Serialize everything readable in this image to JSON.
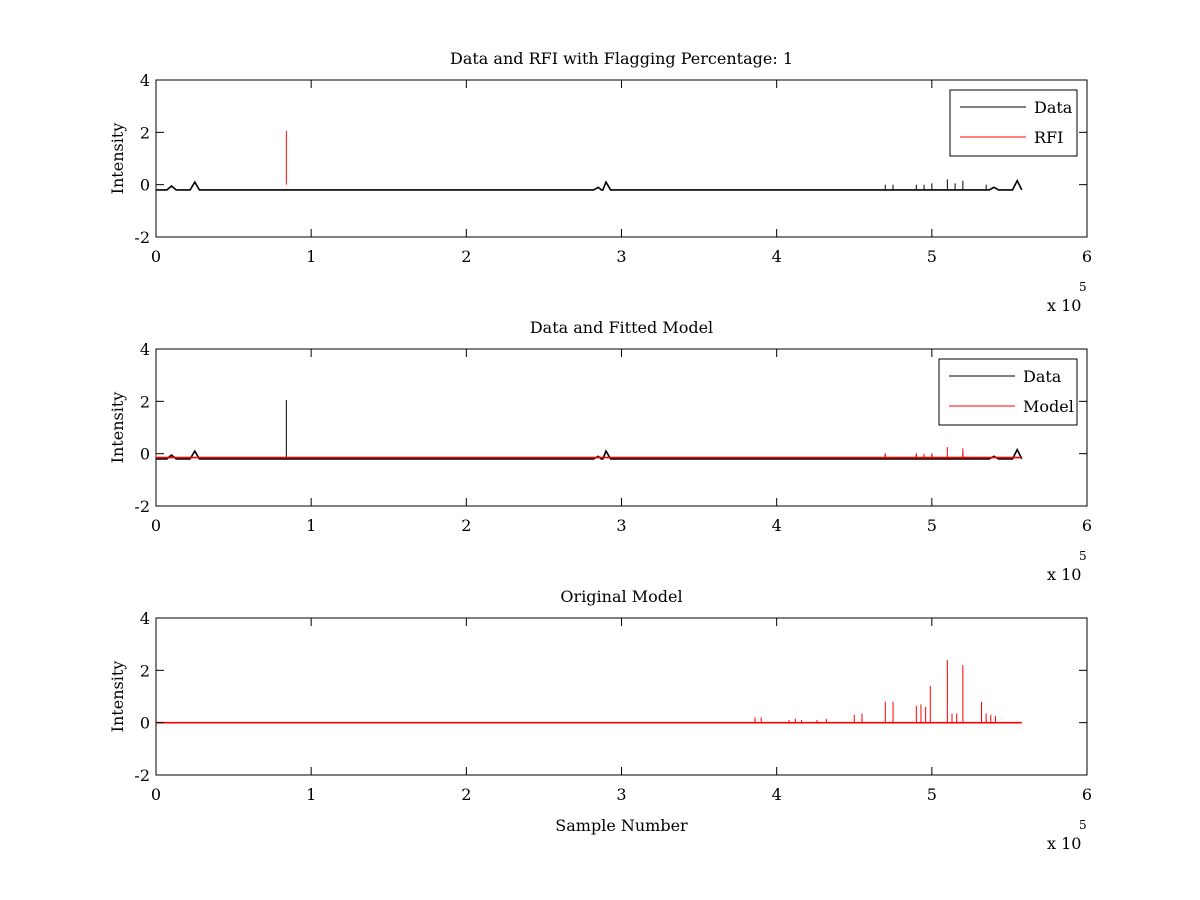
{
  "chart_data": [
    {
      "type": "line",
      "title": "Data and RFI with Flagging Percentage: 1",
      "ylabel": "Intensity",
      "xlabel": "",
      "xlim": [
        0,
        600000
      ],
      "ylim": [
        -2,
        4
      ],
      "x_ticks": [
        "0",
        "1",
        "2",
        "3",
        "4",
        "5",
        "6"
      ],
      "y_ticks": [
        "-2",
        "0",
        "2",
        "4"
      ],
      "x_multiplier": "x 10",
      "x_multiplier_exp": "5",
      "legend_position": "top-right",
      "grid": false,
      "series": [
        {
          "name": "Data",
          "color": "#000000",
          "baseline": -0.2,
          "bumps": [
            [
              10000,
              -0.05
            ],
            [
              25000,
              0.1
            ],
            [
              285000,
              -0.1
            ],
            [
              290000,
              0.1
            ],
            [
              540000,
              -0.1
            ],
            [
              555000,
              0.15
            ]
          ],
          "spikes": [
            [
              470000,
              0.0
            ],
            [
              475000,
              0.0
            ],
            [
              490000,
              0.0
            ],
            [
              495000,
              0.0
            ],
            [
              500000,
              0.05
            ],
            [
              510000,
              0.2
            ],
            [
              515000,
              0.05
            ],
            [
              520000,
              0.15
            ],
            [
              535000,
              0.0
            ]
          ],
          "x_end": 558000
        },
        {
          "name": "RFI",
          "color": "#ff0000",
          "spikes": [
            [
              84000,
              2.05
            ]
          ],
          "x_start": 84000,
          "x_end": 84000
        }
      ]
    },
    {
      "type": "line",
      "title": "Data and Fitted Model",
      "ylabel": "Intensity",
      "xlabel": "",
      "xlim": [
        0,
        600000
      ],
      "ylim": [
        -2,
        4
      ],
      "x_ticks": [
        "0",
        "1",
        "2",
        "3",
        "4",
        "5",
        "6"
      ],
      "y_ticks": [
        "-2",
        "0",
        "2",
        "4"
      ],
      "x_multiplier": "x 10",
      "x_multiplier_exp": "5",
      "legend_position": "top-right",
      "grid": false,
      "series": [
        {
          "name": "Data",
          "color": "#000000",
          "baseline": -0.2,
          "bumps": [
            [
              10000,
              -0.05
            ],
            [
              25000,
              0.1
            ],
            [
              285000,
              -0.1
            ],
            [
              290000,
              0.1
            ],
            [
              540000,
              -0.1
            ],
            [
              555000,
              0.15
            ]
          ],
          "spikes": [
            [
              84000,
              2.05
            ],
            [
              470000,
              0.0
            ],
            [
              490000,
              0.0
            ],
            [
              500000,
              0.0
            ],
            [
              520000,
              0.05
            ]
          ],
          "x_end": 558000
        },
        {
          "name": "Model",
          "color": "#ff0000",
          "baseline": -0.15,
          "spikes": [
            [
              0,
              0.05
            ],
            [
              470000,
              0.0
            ],
            [
              490000,
              0.0
            ],
            [
              495000,
              0.0
            ],
            [
              500000,
              0.0
            ],
            [
              510000,
              0.25
            ],
            [
              520000,
              0.2
            ]
          ],
          "x_end": 558000
        }
      ]
    },
    {
      "type": "line",
      "title": "Original Model",
      "ylabel": "Intensity",
      "xlabel": "Sample Number",
      "xlim": [
        0,
        600000
      ],
      "ylim": [
        -2,
        4
      ],
      "x_ticks": [
        "0",
        "1",
        "2",
        "3",
        "4",
        "5",
        "6"
      ],
      "y_ticks": [
        "-2",
        "0",
        "2",
        "4"
      ],
      "x_multiplier": "x 10",
      "x_multiplier_exp": "5",
      "legend_position": "none",
      "grid": false,
      "series": [
        {
          "color": "#ff0000",
          "baseline": 0,
          "spikes": [
            [
              386000,
              0.2
            ],
            [
              390000,
              0.2
            ],
            [
              408000,
              0.1
            ],
            [
              412000,
              0.15
            ],
            [
              416000,
              0.1
            ],
            [
              426000,
              0.1
            ],
            [
              432000,
              0.15
            ],
            [
              450000,
              0.3
            ],
            [
              455000,
              0.35
            ],
            [
              470000,
              0.8
            ],
            [
              475000,
              0.8
            ],
            [
              490000,
              0.65
            ],
            [
              493000,
              0.7
            ],
            [
              496000,
              0.6
            ],
            [
              499000,
              1.4
            ],
            [
              510000,
              2.4
            ],
            [
              513000,
              0.35
            ],
            [
              516000,
              0.35
            ],
            [
              520000,
              2.2
            ],
            [
              532000,
              0.8
            ],
            [
              535000,
              0.35
            ],
            [
              538000,
              0.3
            ],
            [
              541000,
              0.25
            ]
          ],
          "x_end": 558000
        }
      ]
    }
  ]
}
